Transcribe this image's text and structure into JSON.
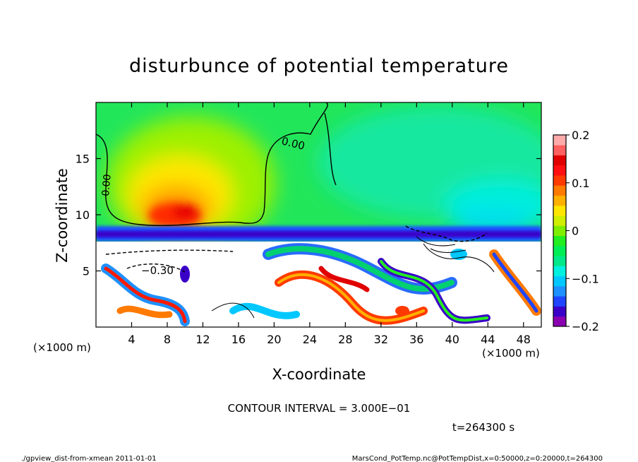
{
  "chart_data": {
    "type": "heatmap",
    "title": "disturbunce of potential temperature",
    "xlabel": "X-coordinate",
    "ylabel": "Z-coordinate",
    "x_unit_left": "(×1000 m)",
    "x_unit_right": "(×1000 m)",
    "xlim": [
      0,
      50
    ],
    "ylim": [
      0,
      20
    ],
    "x_ticks": [
      4,
      8,
      12,
      16,
      20,
      24,
      28,
      32,
      36,
      40,
      44,
      48
    ],
    "y_ticks": [
      5,
      10,
      15
    ],
    "colorbar": {
      "ticks": [
        {
          "value": 0.2,
          "label": "0.2"
        },
        {
          "value": 0.1,
          "label": "0.1"
        },
        {
          "value": 0,
          "label": "0"
        },
        {
          "value": -0.1,
          "label": "−0.1"
        },
        {
          "value": -0.2,
          "label": "−0.2"
        }
      ],
      "range": [
        -0.2,
        0.2
      ],
      "colors": [
        "#8a00b0",
        "#3a00c8",
        "#1f45ff",
        "#1e90ff",
        "#00c8ff",
        "#00f0e0",
        "#00e88a",
        "#00ee55",
        "#22ee22",
        "#7fee00",
        "#d0ee00",
        "#ffe600",
        "#ffb000",
        "#ff7a00",
        "#ff3a00",
        "#ff0f0f",
        "#e00000",
        "#ff6060",
        "#ffaaaa"
      ]
    },
    "contour_labels": [
      "0.00",
      "0.00",
      "−0.30"
    ],
    "contour_interval_text": "CONTOUR INTERVAL = 3.000E−01",
    "time_text": "t=264300 s"
  },
  "footer": {
    "left": "./gpview_dist-from-xmean  2011-01-01",
    "right": "MarsCond_PotTemp.nc@PotTempDist,x=0:50000,z=0:20000,t=264300"
  }
}
